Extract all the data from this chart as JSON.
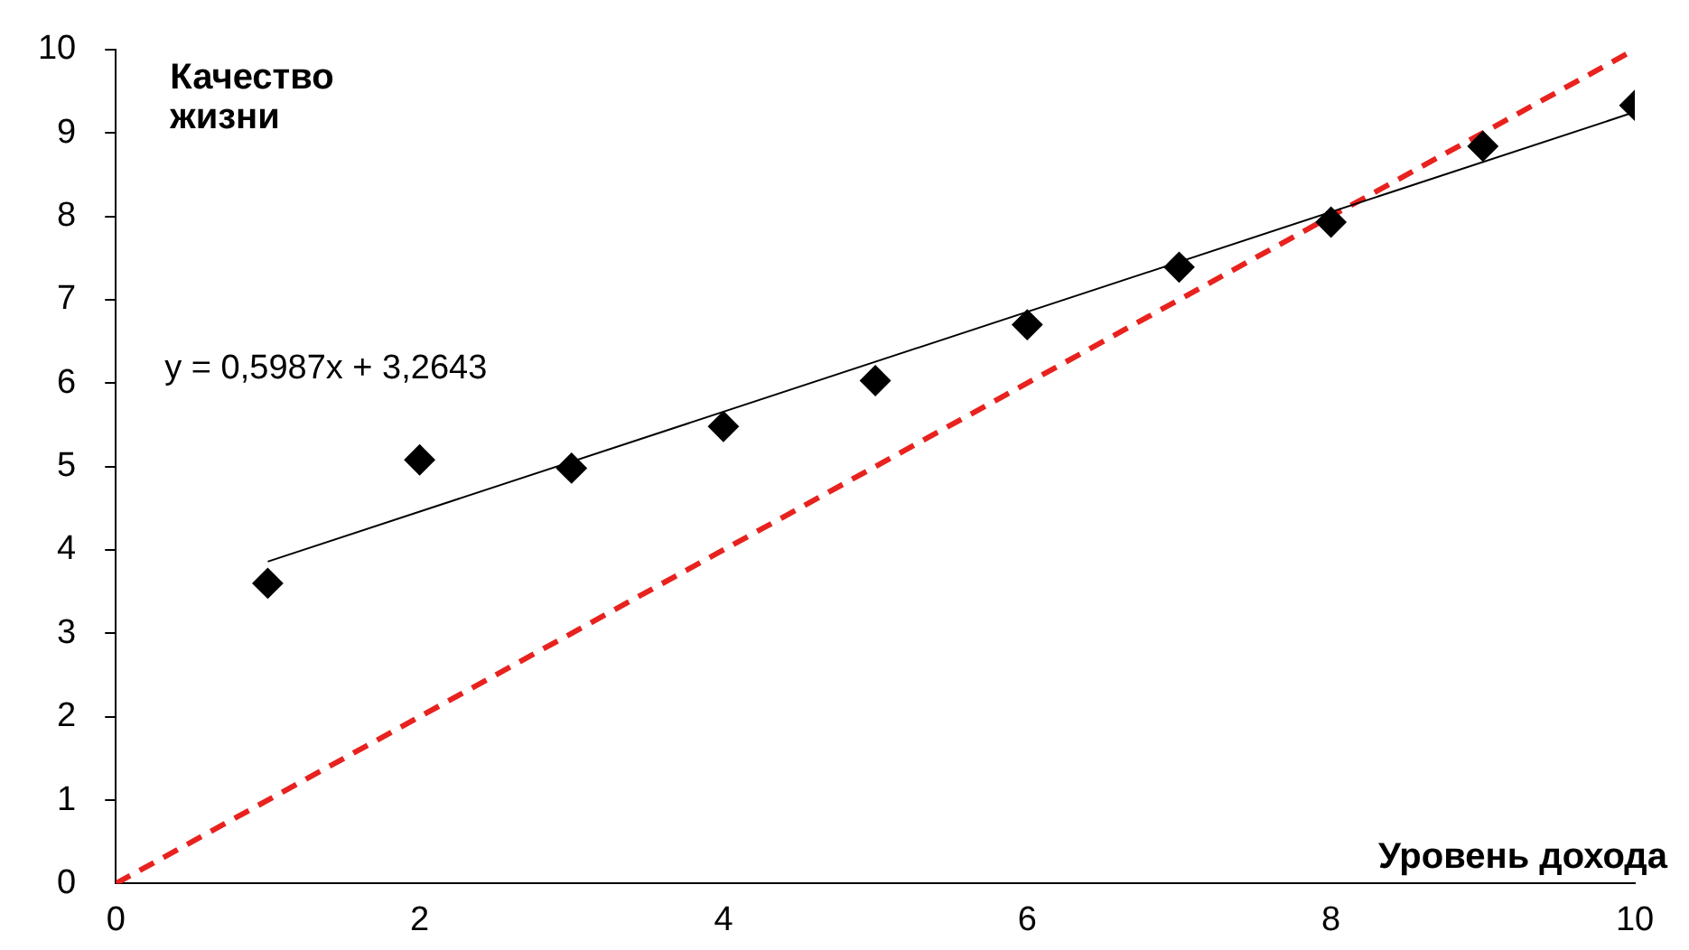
{
  "chart_data": {
    "type": "scatter",
    "xlabel": "Уровень дохода",
    "ylabel": "Качество жизни",
    "annotations": [
      "y = 0,5987x + 3,2643"
    ],
    "xlim": [
      0,
      10
    ],
    "ylim": [
      0,
      10
    ],
    "xticks": [
      0,
      2,
      4,
      6,
      8,
      10
    ],
    "yticks": [
      0,
      1,
      2,
      3,
      4,
      5,
      6,
      7,
      8,
      9,
      10
    ],
    "grid": false,
    "legend": false,
    "series": [
      {
        "type": "scatter",
        "color": "#000000",
        "marker": "diamond",
        "x": [
          1,
          2,
          3,
          4,
          5,
          6,
          7,
          8,
          9,
          10
        ],
        "values": [
          3.6,
          5.08,
          4.98,
          5.48,
          6.03,
          6.7,
          7.39,
          7.93,
          8.84,
          9.33
        ]
      },
      {
        "type": "line",
        "color": "#000000",
        "marker": "none",
        "line_style": "solid",
        "x": [
          1,
          10
        ],
        "values": [
          3.86,
          9.25
        ]
      },
      {
        "type": "line",
        "color": "#e8221e",
        "marker": "none",
        "line_style": "dashed",
        "x": [
          0,
          10
        ],
        "values": [
          0,
          10
        ]
      }
    ]
  }
}
